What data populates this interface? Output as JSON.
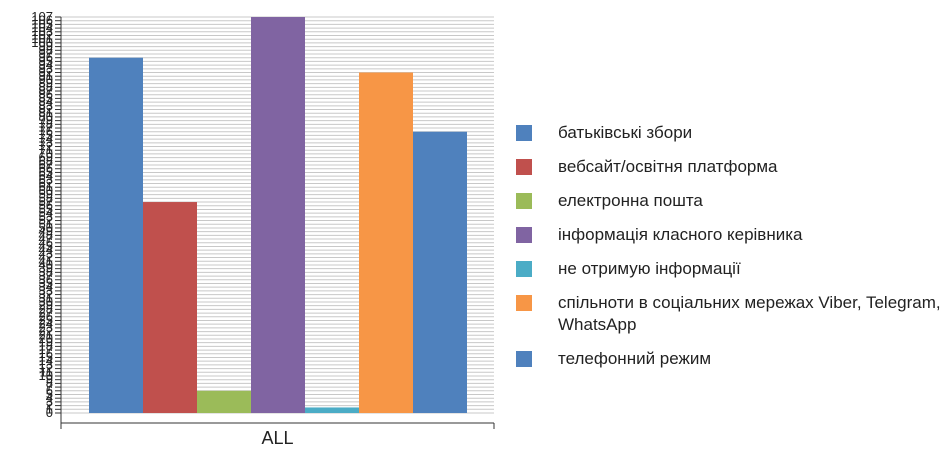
{
  "chart_data": {
    "type": "bar",
    "categories": [
      "ALL"
    ],
    "ylim": [
      0,
      107
    ],
    "y_tick_step": 1,
    "grid": true,
    "legend_position": "right",
    "series": [
      {
        "name": "батьківські збори",
        "values": [
          96
        ],
        "color": "#4f81bd"
      },
      {
        "name": "вебсайт/освітня платформа",
        "values": [
          57
        ],
        "color": "#c0504d"
      },
      {
        "name": "електронна пошта",
        "values": [
          6
        ],
        "color": "#9bbb59"
      },
      {
        "name": "інформація класного керівника",
        "values": [
          107
        ],
        "color": "#8064a2"
      },
      {
        "name": "не отримую інформації",
        "values": [
          1.5
        ],
        "color": "#4bacc6"
      },
      {
        "name": "спільноти в соціальних мережах Viber, Telegram, WhatsApp",
        "values": [
          92
        ],
        "color": "#f79646"
      },
      {
        "name": "телефонний режим",
        "values": [
          76
        ],
        "color": "#4f81bd"
      }
    ]
  }
}
